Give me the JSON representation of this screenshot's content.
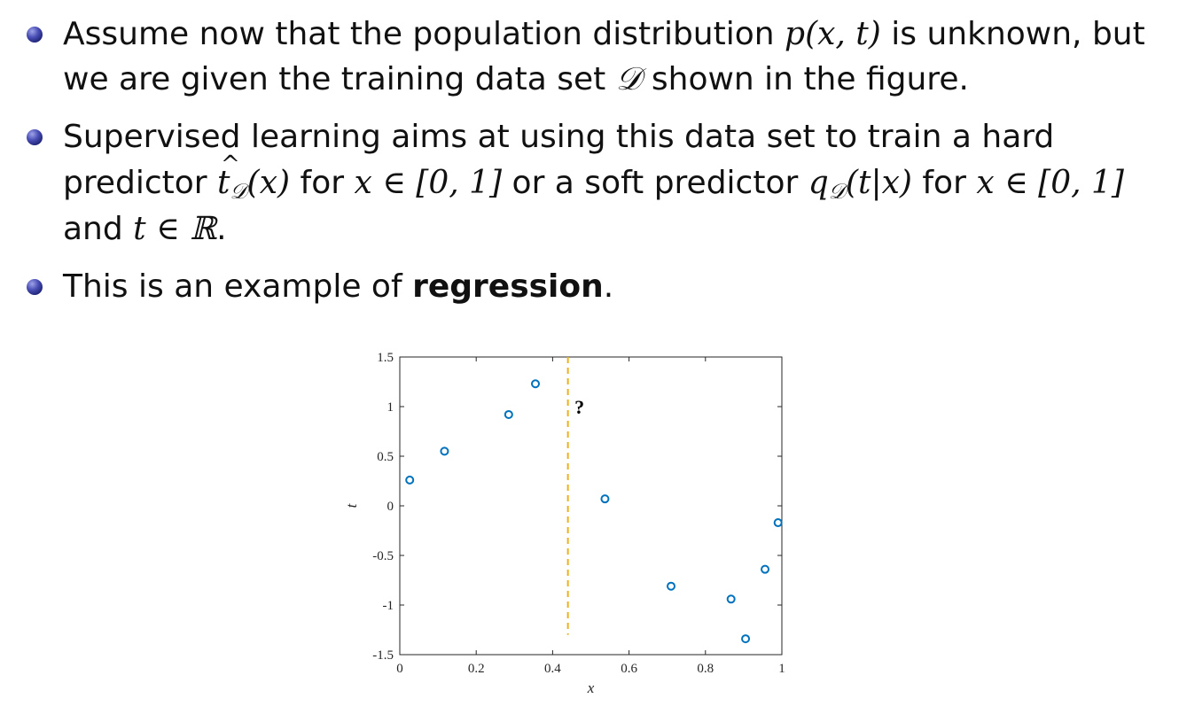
{
  "bullets": [
    {
      "line1": {
        "prefix": "Assume now that the population distribution ",
        "math": "p(x, t)",
        "suffix": " is unknown, but"
      },
      "line2": {
        "prefix": "we are given the training data set ",
        "math": "𝒟",
        "suffix": " shown in the figure."
      }
    },
    {
      "line1": {
        "text": "Supervised learning aims at using this data set to train a hard"
      },
      "line2": {
        "predictor_word": "predictor ",
        "hard_t": "t",
        "hard_sub": "𝒟",
        "hard_arg": "(x)",
        "for1": " for ",
        "cond1": "x ∈ [0, 1]",
        "or_soft": " or a soft predictor ",
        "q": "q",
        "q_sub": "𝒟",
        "q_arg": "(t|x)",
        "for2": " for ",
        "cond2": "x ∈ [0, 1]"
      },
      "line3": {
        "and": "and ",
        "cond3": "t ∈ ℝ",
        "period": "."
      }
    },
    {
      "line1": {
        "prefix": "This is an example of ",
        "bold": "regression",
        "suffix": "."
      }
    }
  ],
  "chart_data": {
    "type": "scatter",
    "title": "",
    "xlabel": "x",
    "ylabel": "t",
    "xlim": [
      0,
      1
    ],
    "ylim": [
      -1.5,
      1.5
    ],
    "xticks": [
      0,
      0.2,
      0.4,
      0.6,
      0.8,
      1
    ],
    "xtick_labels": [
      "0",
      "0.2",
      "0.4",
      "0.6",
      "0.8",
      "1"
    ],
    "yticks": [
      1.5,
      1,
      0.5,
      0,
      -0.5,
      -1,
      -1.5
    ],
    "ytick_labels": [
      "1.5",
      "1",
      "0.5",
      "0",
      "-0.5",
      "-1",
      "-1.5"
    ],
    "grid": false,
    "marker_color": "#0072BD",
    "series": [
      {
        "points": [
          [
            0.026,
            0.26
          ],
          [
            0.117,
            0.55
          ],
          [
            0.285,
            0.92
          ],
          [
            0.355,
            1.23
          ],
          [
            0.537,
            0.07
          ],
          [
            0.71,
            -0.81
          ],
          [
            0.867,
            -0.94
          ],
          [
            0.905,
            -1.34
          ],
          [
            0.956,
            -0.64
          ],
          [
            0.99,
            -0.17
          ]
        ]
      }
    ],
    "vline": {
      "x": 0.44,
      "y_from": -1.3,
      "y_to": 1.5,
      "color": "#EDB120",
      "style": "dashed"
    },
    "annotation": {
      "text": "?",
      "x": 0.47,
      "y": 1.0
    }
  }
}
